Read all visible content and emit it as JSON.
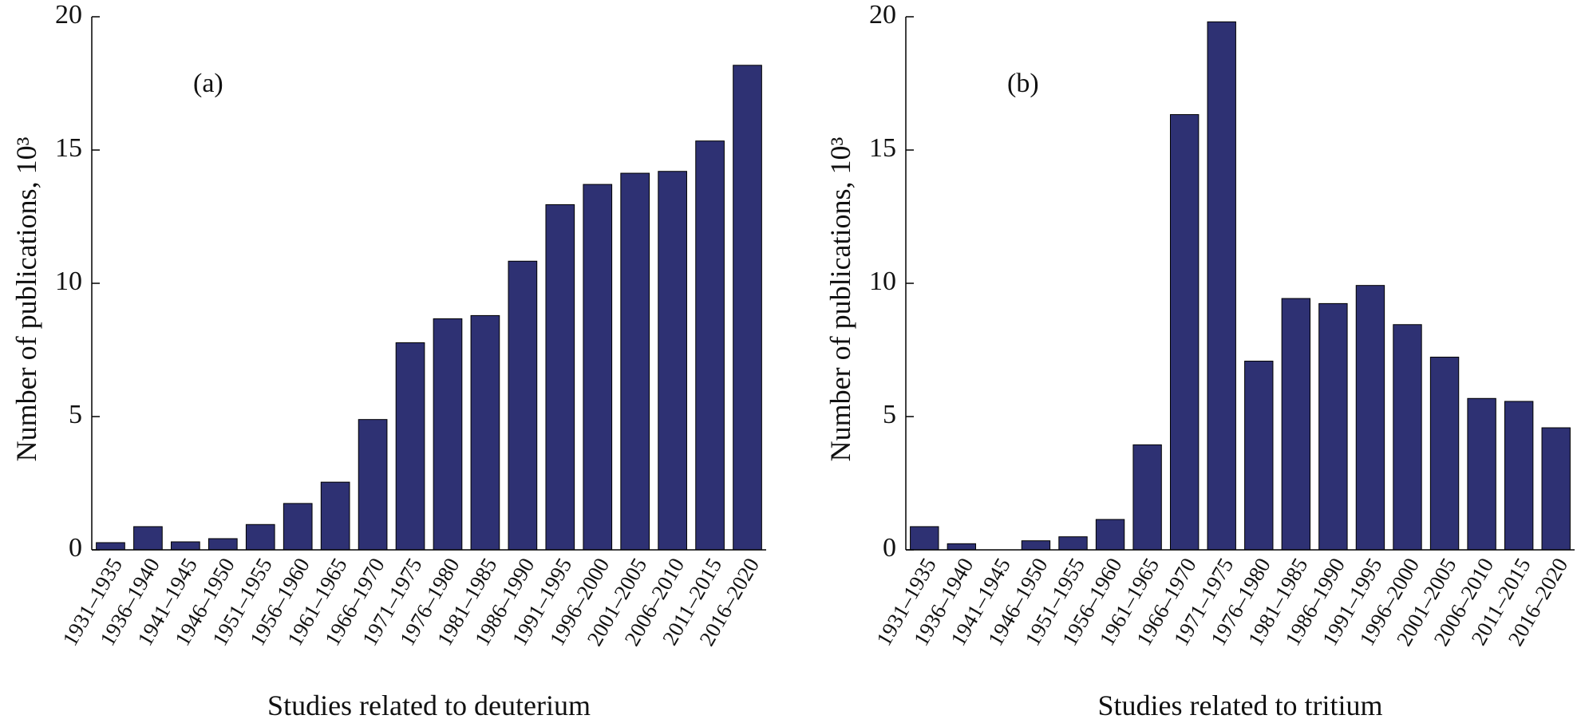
{
  "chart_data": [
    {
      "type": "bar",
      "annotation": "(a)",
      "ylabel": "Number of publications, 10³",
      "xlabel": "Studies related to deuterium",
      "categories": [
        "1931–1935",
        "1936–1940",
        "1941–1945",
        "1946–1950",
        "1951–1955",
        "1956–1960",
        "1961–1965",
        "1966–1970",
        "1971–1975",
        "1976–1980",
        "1981–1985",
        "1986–1990",
        "1991–1995",
        "1996–2000",
        "2001–2005",
        "2006–2010",
        "2011–2015",
        "2016–2020"
      ],
      "values": [
        0.27,
        0.87,
        0.3,
        0.42,
        0.95,
        1.74,
        2.54,
        4.89,
        7.77,
        8.67,
        8.79,
        10.83,
        12.95,
        13.71,
        14.13,
        14.2,
        15.34,
        18.18
      ],
      "color": "#2e3173",
      "ylim": [
        0,
        20
      ],
      "yticks": [
        0,
        5,
        10,
        15,
        20
      ]
    },
    {
      "type": "bar",
      "annotation": "(b)",
      "ylabel": "Number of publications, 10³",
      "xlabel": "Studies related to tritium",
      "categories": [
        "1931–1935",
        "1936–1940",
        "1941–1945",
        "1946–1950",
        "1951–1955",
        "1956–1960",
        "1961–1965",
        "1966–1970",
        "1971–1975",
        "1976–1980",
        "1981–1985",
        "1986–1990",
        "1991–1995",
        "1996–2000",
        "2001–2005",
        "2006–2010",
        "2011–2015",
        "2016–2020"
      ],
      "values": [
        0.87,
        0.23,
        0,
        0.34,
        0.49,
        1.14,
        3.94,
        16.33,
        19.81,
        7.08,
        9.43,
        9.24,
        9.92,
        8.45,
        7.23,
        5.68,
        5.57,
        4.58
      ],
      "color": "#2e3173",
      "ylim": [
        0,
        20
      ],
      "yticks": [
        0,
        5,
        10,
        15,
        20
      ]
    }
  ]
}
